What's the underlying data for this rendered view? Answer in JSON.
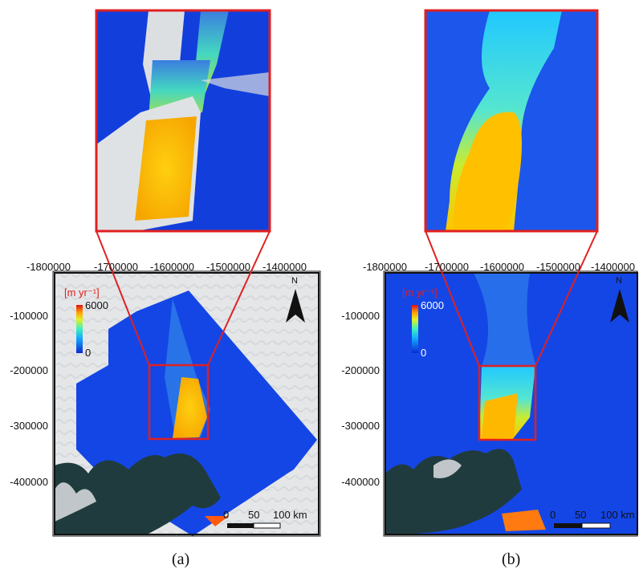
{
  "panels": [
    {
      "caption": "(a)",
      "x_ticks": [
        "-1800000",
        "-1700000",
        "-1600000",
        "-1500000",
        "-1400000"
      ],
      "y_ticks": [
        "-100000",
        "-200000",
        "-300000",
        "-400000"
      ],
      "colorbar": {
        "unit": "[m yr⁻¹]",
        "max": "6000",
        "min": "0"
      },
      "north": "N",
      "scale_bar": {
        "labels": [
          "0",
          "50",
          "100 km"
        ]
      }
    },
    {
      "caption": "(b)",
      "x_ticks": [
        "-1800000",
        "-1700000",
        "-1600000",
        "-1500000",
        "-1400000"
      ],
      "y_ticks": [
        "-100000",
        "-200000",
        "-300000",
        "-400000"
      ],
      "colorbar": {
        "unit": "[m yr⁻¹]",
        "max": "6000",
        "min": "0"
      },
      "north": "N",
      "scale_bar": {
        "labels": [
          "0",
          "50",
          "100 km"
        ]
      }
    }
  ],
  "colors": {
    "highlight": "#e02020",
    "velocity_low": "#1a4fe0",
    "velocity_high": "#ffb000",
    "rock": "#1f3a3a",
    "ice": "#e6e8ea"
  }
}
